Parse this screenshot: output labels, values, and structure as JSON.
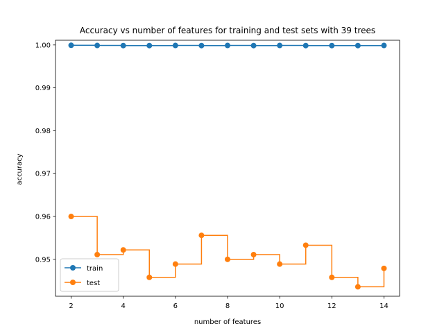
{
  "chart_data": {
    "type": "line",
    "title": "Accuracy vs number of features for training and test sets with 39 trees",
    "xlabel": "number of features",
    "ylabel": "accuracy",
    "x": [
      2,
      3,
      4,
      5,
      6,
      7,
      8,
      9,
      10,
      11,
      12,
      13,
      14
    ],
    "xlim": [
      1.4,
      14.6
    ],
    "ylim": [
      0.9414,
      1.0011
    ],
    "xticks": [
      2,
      4,
      6,
      8,
      10,
      12,
      14
    ],
    "yticks": [
      0.95,
      0.96,
      0.97,
      0.98,
      0.99,
      1.0
    ],
    "ytick_labels": [
      "0.95",
      "0.96",
      "0.97",
      "0.98",
      "0.99",
      "1.00"
    ],
    "grid": false,
    "legend_position": "lower-left",
    "drawstyle": "steps-post",
    "series": [
      {
        "name": "train",
        "color": "#1f77b4",
        "values": [
          0.99992,
          0.99988,
          0.99985,
          0.99985,
          0.99988,
          0.99985,
          0.99988,
          0.99985,
          0.99988,
          0.99985,
          0.99985,
          0.99985,
          0.99988
        ]
      },
      {
        "name": "test",
        "color": "#ff7f0e",
        "values": [
          0.96,
          0.9511,
          0.9522,
          0.9458,
          0.9489,
          0.9556,
          0.95,
          0.9511,
          0.9489,
          0.9533,
          0.9458,
          0.9436,
          0.9479
        ]
      }
    ]
  }
}
